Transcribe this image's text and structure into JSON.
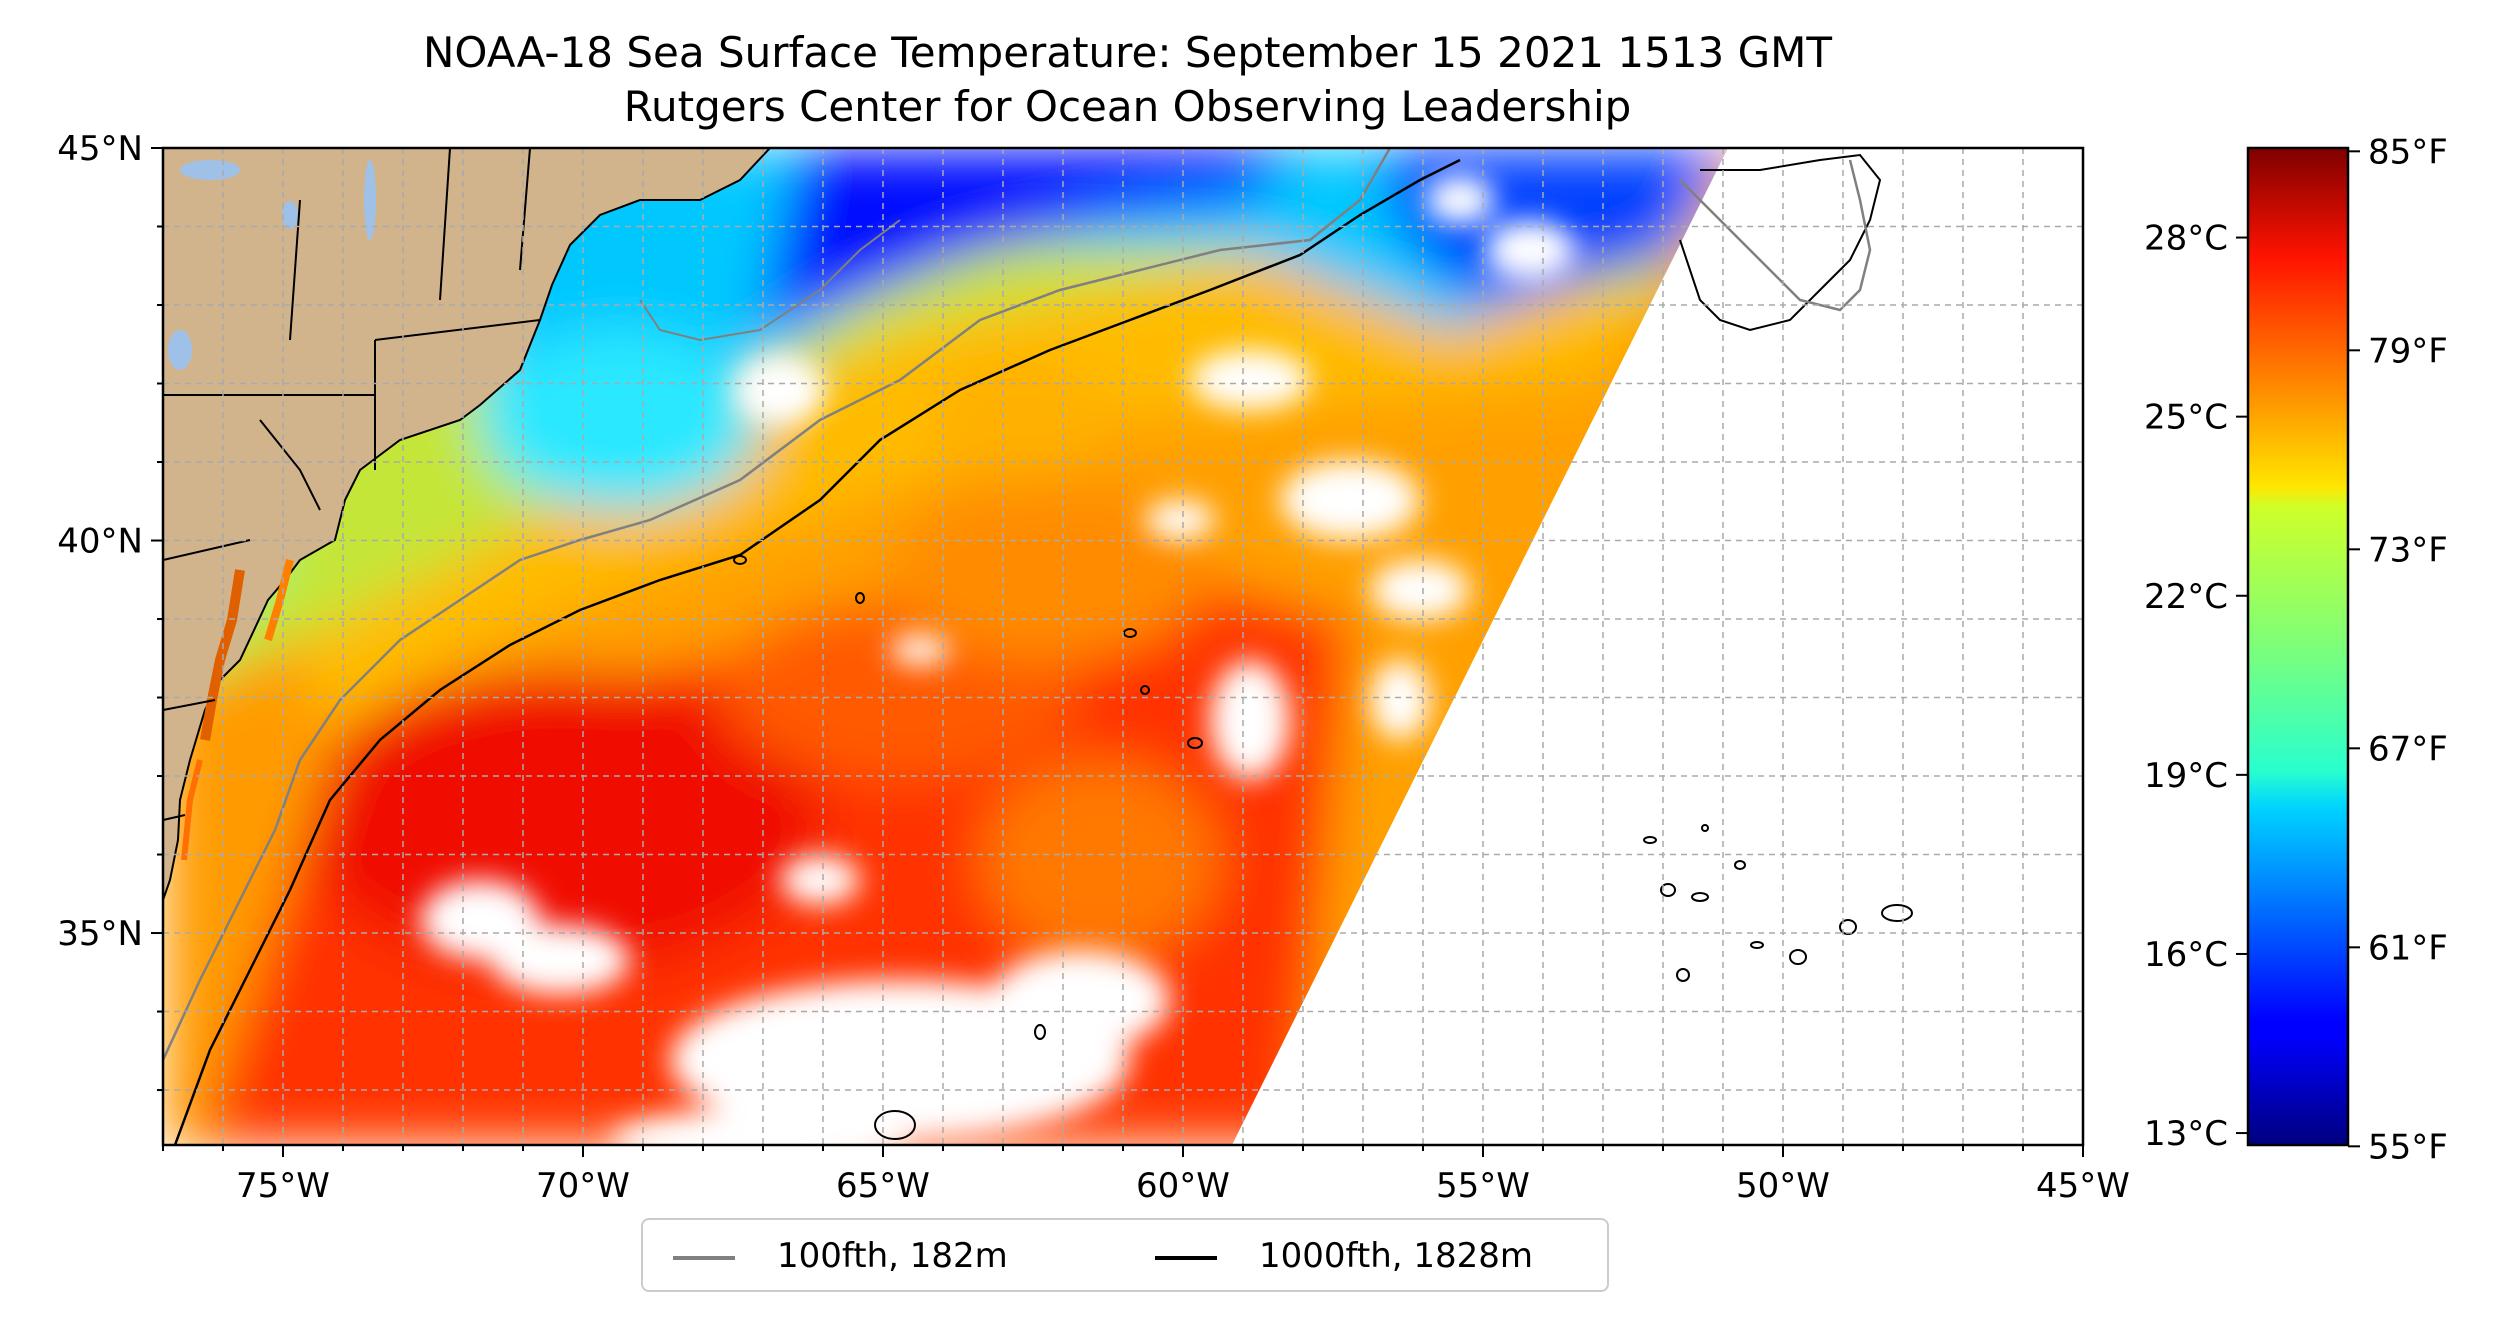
{
  "title": {
    "line1": "NOAA-18 Sea Surface Temperature: September 15 2021 1513 GMT",
    "line2": "Rutgers Center for Ocean Observing Leadership"
  },
  "map": {
    "lon_range": [
      -77,
      -45
    ],
    "lat_range": [
      32.3,
      45
    ],
    "lon_ticks": [
      "75°W",
      "70°W",
      "65°W",
      "60°W",
      "55°W",
      "50°W",
      "45°W"
    ],
    "lon_tick_values": [
      -75,
      -70,
      -65,
      -60,
      -55,
      -50,
      -45
    ],
    "lat_ticks": [
      "45°N",
      "40°N",
      "35°N"
    ],
    "lat_tick_values": [
      45,
      40,
      35
    ],
    "gridlines": true,
    "land_color": "#d2b48c",
    "lake_color": "#9fc1e8"
  },
  "colorbar": {
    "colormap": "jet",
    "min_c": 12.8,
    "max_c": 29.5,
    "celsius_labels": [
      "28°C",
      "25°C",
      "22°C",
      "19°C",
      "16°C",
      "13°C"
    ],
    "celsius_values": [
      28,
      25,
      22,
      19,
      16,
      13
    ],
    "fahrenheit_labels": [
      "85°F",
      "79°F",
      "73°F",
      "67°F",
      "61°F",
      "55°F"
    ],
    "fahrenheit_values": [
      85,
      79,
      73,
      67,
      61,
      55
    ]
  },
  "legend": {
    "items": [
      {
        "label": "100fth, 182m",
        "color": "#808080"
      },
      {
        "label": "1000fth, 1828m",
        "color": "#000000"
      }
    ]
  }
}
